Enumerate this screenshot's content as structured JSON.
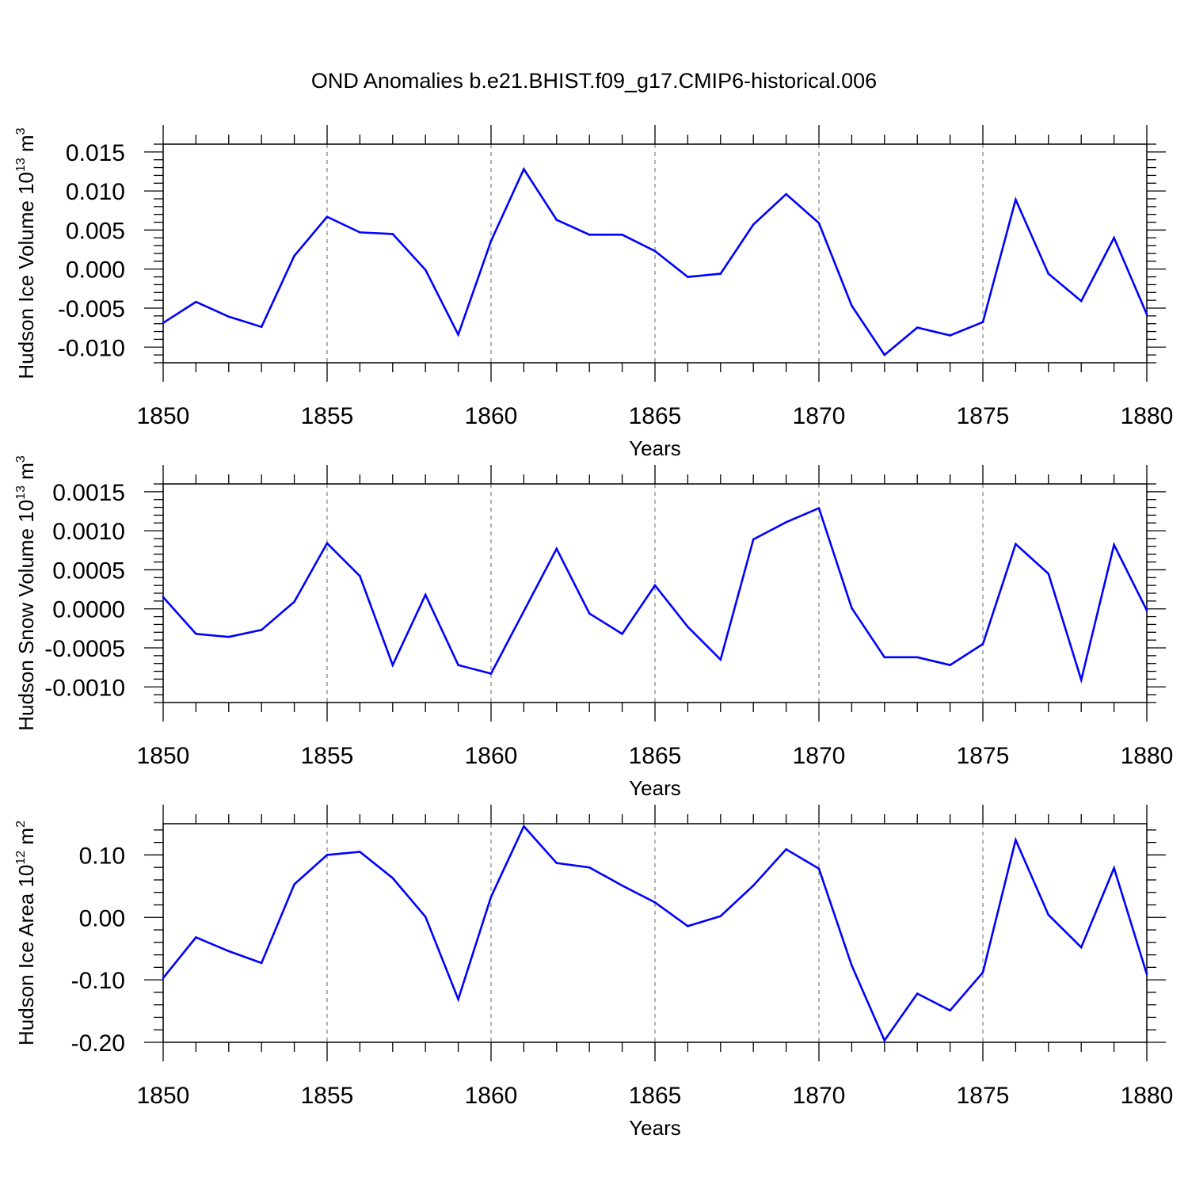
{
  "title": "OND Anomalies b.e21.BHIST.f09_g17.CMIP6-historical.006",
  "colors": {
    "line": "#0000ff",
    "axis": "#000000",
    "grid": "#808080"
  },
  "chart_data": [
    {
      "type": "line",
      "ylabel": "Hudson Ice Volume",
      "yunit_base": "10",
      "yunit_exp": "13",
      "yunit_m": "m",
      "yunit_dim": "3",
      "xlabel": "Years",
      "xlim": [
        1850,
        1880
      ],
      "ylim": [
        -0.012,
        0.016
      ],
      "xticks": [
        1850,
        1855,
        1860,
        1865,
        1870,
        1875,
        1880
      ],
      "xtick_labels": [
        "1850",
        "1855",
        "1860",
        "1865",
        "1870",
        "1875",
        "1880"
      ],
      "yticks": [
        -0.01,
        -0.005,
        0.0,
        0.005,
        0.01,
        0.015
      ],
      "ytick_labels": [
        "-0.010",
        "-0.005",
        "0.000",
        "0.005",
        "0.010",
        "0.015"
      ],
      "yminor_step": 0.001,
      "x": [
        1850,
        1851,
        1852,
        1853,
        1854,
        1855,
        1856,
        1857,
        1858,
        1859,
        1860,
        1861,
        1862,
        1863,
        1864,
        1865,
        1866,
        1867,
        1868,
        1869,
        1870,
        1871,
        1872,
        1873,
        1874,
        1875,
        1876,
        1877,
        1878,
        1879,
        1880
      ],
      "values": [
        -0.0069,
        -0.0042,
        -0.0061,
        -0.0074,
        0.0017,
        0.0067,
        0.0047,
        0.0045,
        -0.0001,
        -0.0084,
        0.0036,
        0.0128,
        0.0063,
        0.0044,
        0.0044,
        0.0023,
        -0.001,
        -0.0006,
        0.0057,
        0.0096,
        0.0059,
        -0.0047,
        -0.011,
        -0.0075,
        -0.0085,
        -0.0068,
        0.0089,
        -0.0006,
        -0.0041,
        0.004,
        -0.0058
      ]
    },
    {
      "type": "line",
      "ylabel": "Hudson Snow Volume",
      "yunit_base": "10",
      "yunit_exp": "13",
      "yunit_m": "m",
      "yunit_dim": "3",
      "xlabel": "Years",
      "xlim": [
        1850,
        1880
      ],
      "ylim": [
        -0.0012,
        0.0016
      ],
      "xticks": [
        1850,
        1855,
        1860,
        1865,
        1870,
        1875,
        1880
      ],
      "xtick_labels": [
        "1850",
        "1855",
        "1860",
        "1865",
        "1870",
        "1875",
        "1880"
      ],
      "yticks": [
        -0.001,
        -0.0005,
        0.0,
        0.0005,
        0.001,
        0.0015
      ],
      "ytick_labels": [
        "-0.0010",
        "-0.0005",
        "0.0000",
        "0.0005",
        "0.0010",
        "0.0015"
      ],
      "yminor_step": 0.0001,
      "x": [
        1850,
        1851,
        1852,
        1853,
        1854,
        1855,
        1856,
        1857,
        1858,
        1859,
        1860,
        1861,
        1862,
        1863,
        1864,
        1865,
        1866,
        1867,
        1868,
        1869,
        1870,
        1871,
        1872,
        1873,
        1874,
        1875,
        1876,
        1877,
        1878,
        1879,
        1880
      ],
      "values": [
        0.00015,
        -0.00032,
        -0.00036,
        -0.00027,
        9e-05,
        0.00084,
        0.00042,
        -0.00072,
        0.00018,
        -0.00072,
        -0.00083,
        -3e-05,
        0.00077,
        -6e-05,
        -0.00032,
        0.0003,
        -0.00023,
        -0.00065,
        0.00089,
        0.00111,
        0.00129,
        1e-05,
        -0.00062,
        -0.00062,
        -0.00072,
        -0.00045,
        0.00083,
        0.00045,
        -0.00091,
        0.00082,
        -2e-05
      ]
    },
    {
      "type": "line",
      "ylabel": "Hudson Ice Area",
      "yunit_base": "10",
      "yunit_exp": "12",
      "yunit_m": "m",
      "yunit_dim": "2",
      "xlabel": "Years",
      "xlim": [
        1850,
        1880
      ],
      "ylim": [
        -0.2,
        0.15
      ],
      "xticks": [
        1850,
        1855,
        1860,
        1865,
        1870,
        1875,
        1880
      ],
      "xtick_labels": [
        "1850",
        "1855",
        "1860",
        "1865",
        "1870",
        "1875",
        "1880"
      ],
      "yticks": [
        -0.2,
        -0.1,
        0.0,
        0.1
      ],
      "ytick_labels": [
        "-0.20",
        "-0.10",
        "0.00",
        "0.10"
      ],
      "yminor_step": 0.02,
      "x": [
        1850,
        1851,
        1852,
        1853,
        1854,
        1855,
        1856,
        1857,
        1858,
        1859,
        1860,
        1861,
        1862,
        1863,
        1864,
        1865,
        1866,
        1867,
        1868,
        1869,
        1870,
        1871,
        1872,
        1873,
        1874,
        1875,
        1876,
        1877,
        1878,
        1879,
        1880
      ],
      "values": [
        -0.097,
        -0.032,
        -0.054,
        -0.073,
        0.053,
        0.1,
        0.105,
        0.063,
        0.001,
        -0.131,
        0.033,
        0.146,
        0.087,
        0.08,
        0.051,
        0.024,
        -0.014,
        0.002,
        0.051,
        0.109,
        0.078,
        -0.077,
        -0.197,
        -0.122,
        -0.149,
        -0.088,
        0.124,
        0.004,
        -0.048,
        0.079,
        -0.091
      ]
    }
  ]
}
